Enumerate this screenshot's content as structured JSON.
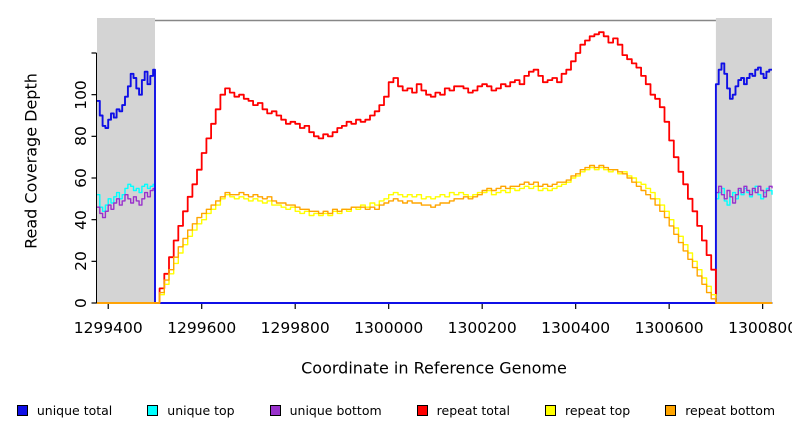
{
  "figure": {
    "background": "#FFFFFF",
    "frame_color": "#878787",
    "axis_color": "#000000",
    "band_color": "#D4D4D4"
  },
  "chart_data": {
    "type": "line",
    "title": "",
    "xlabel": "Coordinate in Reference Genome",
    "ylabel": "Read Coverage Depth",
    "xlim": [
      1299376,
      1300820
    ],
    "ylim": [
      0,
      136
    ],
    "grid": false,
    "legend_position": "bottom",
    "x_ticks": [
      {
        "value": 1299400,
        "label": "1299400"
      },
      {
        "value": 1299600,
        "label": "1299600"
      },
      {
        "value": 1299800,
        "label": "1299800"
      },
      {
        "value": 1300000,
        "label": "1300000"
      },
      {
        "value": 1300200,
        "label": "1300200"
      },
      {
        "value": 1300400,
        "label": "1300400"
      },
      {
        "value": 1300600,
        "label": "1300600"
      },
      {
        "value": 1300800,
        "label": "1300800"
      }
    ],
    "y_ticks": [
      {
        "value": 0,
        "label": "0"
      },
      {
        "value": 20,
        "label": "20"
      },
      {
        "value": 40,
        "label": "40"
      },
      {
        "value": 60,
        "label": "60"
      },
      {
        "value": 80,
        "label": "80"
      },
      {
        "value": 100,
        "label": "100"
      },
      {
        "value": 120,
        "label": ""
      }
    ],
    "shaded_regions": [
      {
        "x0": 1299376,
        "x1": 1299500
      },
      {
        "x0": 1300700,
        "x1": 1300820
      }
    ],
    "legend": [
      {
        "label": "unique total",
        "color": "#0F0FE6"
      },
      {
        "label": "unique top",
        "color": "#00FFFF"
      },
      {
        "label": "unique bottom",
        "color": "#9932CC"
      },
      {
        "label": "repeat total",
        "color": "#FF0000"
      },
      {
        "label": "repeat top",
        "color": "#FFFF00"
      },
      {
        "label": "repeat bottom",
        "color": "#FFA500"
      }
    ],
    "series": [
      {
        "name": "unique top",
        "color": "#00FFFF",
        "width": 1.4,
        "segments": [
          {
            "x0": 1299376,
            "dx": 6,
            "v": [
              52,
              46,
              44,
              47,
              50,
              48,
              51,
              53,
              50,
              52,
              55,
              57,
              56,
              54,
              55,
              53,
              56,
              57,
              55,
              56,
              57
            ]
          },
          {
            "x0": 1299500,
            "dx": 1200,
            "v": [
              0,
              0
            ]
          },
          {
            "x0": 1300700,
            "dx": 6,
            "v": [
              50,
              53,
              55,
              49,
              47,
              51,
              53,
              50,
              54,
              52,
              55,
              53,
              51,
              54,
              56,
              52,
              50,
              53,
              55,
              54,
              52
            ]
          }
        ]
      },
      {
        "name": "unique bottom",
        "color": "#9932CC",
        "width": 1.4,
        "segments": [
          {
            "x0": 1299376,
            "dx": 6,
            "v": [
              46,
              43,
              41,
              44,
              47,
              45,
              48,
              50,
              47,
              49,
              52,
              50,
              48,
              51,
              49,
              47,
              50,
              53,
              51,
              54,
              55
            ]
          },
          {
            "x0": 1299500,
            "dx": 1200,
            "v": [
              0,
              0
            ]
          },
          {
            "x0": 1300700,
            "dx": 6,
            "v": [
              53,
              56,
              52,
              50,
              54,
              51,
              48,
              52,
              55,
              53,
              56,
              54,
              52,
              55,
              53,
              56,
              54,
              51,
              54,
              56,
              55
            ]
          }
        ]
      },
      {
        "name": "unique total",
        "color": "#0F0FE6",
        "width": 1.9,
        "segments": [
          {
            "x0": 1299376,
            "dx": 6,
            "v": [
              97,
              90,
              85,
              84,
              88,
              91,
              89,
              93,
              92,
              95,
              99,
              104,
              110,
              108,
              103,
              100,
              107,
              111,
              105,
              109,
              112
            ]
          },
          {
            "x0": 1299500,
            "dx": 1200,
            "v": [
              0,
              0
            ]
          },
          {
            "x0": 1300700,
            "dx": 6,
            "v": [
              105,
              112,
              115,
              110,
              103,
              98,
              100,
              104,
              107,
              108,
              105,
              108,
              110,
              109,
              112,
              113,
              110,
              108,
              111,
              112,
              112
            ]
          }
        ]
      },
      {
        "name": "repeat total",
        "color": "#FF0000",
        "width": 1.8,
        "segments": [
          {
            "x0": 1299376,
            "dx": 124,
            "v": [
              0,
              0
            ]
          },
          {
            "x0": 1299500,
            "dx": 10,
            "v": [
              0,
              7,
              14,
              22,
              30,
              37,
              44,
              51,
              57,
              64,
              72,
              79,
              86,
              93,
              100,
              103,
              101,
              99,
              100,
              98,
              97,
              95,
              96,
              93,
              91,
              92,
              90,
              88,
              86,
              87,
              86,
              84,
              85,
              82,
              80,
              79,
              81,
              80,
              82,
              84,
              85,
              87,
              86,
              88,
              87,
              88,
              90,
              92,
              95,
              99,
              106,
              108,
              104,
              102,
              103,
              101,
              105,
              102,
              100,
              99,
              101,
              100,
              103,
              102,
              104,
              104,
              103,
              101,
              102,
              104,
              105,
              104,
              102,
              103,
              105,
              104,
              106,
              107,
              105,
              109,
              111,
              112,
              109,
              106,
              107,
              108,
              106,
              110,
              112,
              116,
              120,
              124,
              126,
              128,
              129,
              130,
              128,
              125,
              127,
              124,
              119,
              117,
              115,
              113,
              109,
              105,
              100,
              98,
              94,
              87,
              78,
              70,
              63,
              57,
              50,
              44,
              37,
              30,
              23,
              16,
              0
            ]
          },
          {
            "x0": 1300700,
            "dx": 120,
            "v": [
              0,
              0
            ]
          }
        ]
      },
      {
        "name": "repeat top",
        "color": "#FFFF00",
        "width": 1.4,
        "segments": [
          {
            "x0": 1299376,
            "dx": 124,
            "v": [
              0,
              0
            ]
          },
          {
            "x0": 1299500,
            "dx": 10,
            "v": [
              0,
              4,
              9,
              14,
              19,
              24,
              28,
              32,
              35,
              38,
              40,
              43,
              45,
              47,
              50,
              52,
              51,
              50,
              51,
              50,
              49,
              50,
              49,
              48,
              49,
              47,
              47,
              46,
              45,
              46,
              44,
              43,
              44,
              42,
              43,
              42,
              43,
              42,
              44,
              43,
              45,
              44,
              46,
              45,
              47,
              46,
              48,
              47,
              49,
              50,
              52,
              53,
              52,
              51,
              52,
              51,
              52,
              50,
              51,
              50,
              51,
              52,
              51,
              53,
              52,
              53,
              52,
              51,
              52,
              53,
              53,
              54,
              52,
              53,
              54,
              53,
              55,
              54,
              55,
              56,
              55,
              56,
              54,
              55,
              54,
              55,
              56,
              57,
              58,
              60,
              61,
              63,
              64,
              65,
              64,
              65,
              64,
              63,
              64,
              62,
              63,
              61,
              60,
              58,
              57,
              55,
              53,
              50,
              47,
              44,
              40,
              36,
              32,
              28,
              24,
              20,
              16,
              12,
              8,
              4,
              0
            ]
          },
          {
            "x0": 1300700,
            "dx": 120,
            "v": [
              0,
              0
            ]
          }
        ]
      },
      {
        "name": "repeat bottom",
        "color": "#FFA500",
        "width": 1.4,
        "segments": [
          {
            "x0": 1299376,
            "dx": 124,
            "v": [
              0,
              0
            ]
          },
          {
            "x0": 1299500,
            "dx": 10,
            "v": [
              0,
              5,
              11,
              16,
              22,
              27,
              31,
              35,
              38,
              41,
              43,
              45,
              47,
              49,
              51,
              53,
              52,
              52,
              53,
              52,
              51,
              52,
              51,
              50,
              51,
              49,
              48,
              48,
              47,
              47,
              46,
              45,
              45,
              44,
              44,
              43,
              44,
              43,
              45,
              44,
              45,
              45,
              46,
              46,
              46,
              45,
              46,
              45,
              47,
              48,
              49,
              50,
              49,
              48,
              49,
              48,
              48,
              47,
              47,
              46,
              47,
              48,
              48,
              49,
              50,
              50,
              51,
              50,
              51,
              52,
              54,
              55,
              54,
              55,
              56,
              55,
              56,
              56,
              57,
              58,
              57,
              58,
              56,
              57,
              56,
              57,
              58,
              58,
              59,
              61,
              62,
              64,
              65,
              66,
              65,
              66,
              65,
              64,
              64,
              63,
              62,
              60,
              58,
              56,
              54,
              52,
              50,
              47,
              44,
              41,
              37,
              33,
              29,
              25,
              21,
              17,
              13,
              9,
              5,
              2,
              0
            ]
          },
          {
            "x0": 1300700,
            "dx": 120,
            "v": [
              0,
              0
            ]
          }
        ]
      }
    ]
  }
}
